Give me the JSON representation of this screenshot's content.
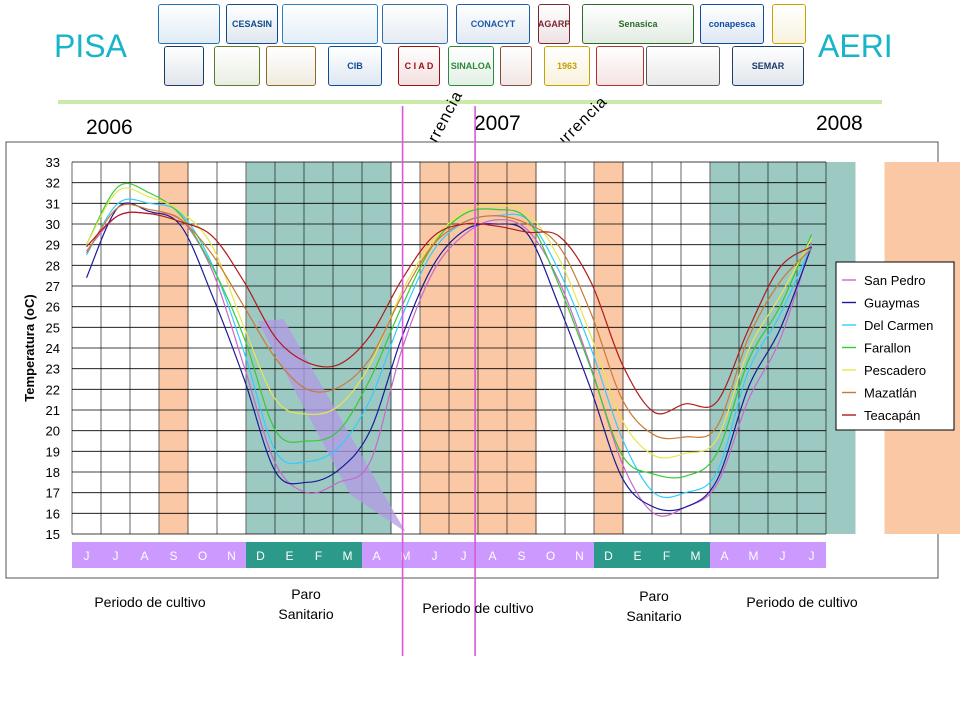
{
  "header": {
    "left_brand": "PISA",
    "right_brand": "AERI",
    "logos_row1": [
      {
        "name": "comite-sanidad-sonora-logo",
        "color": "#1f6fb4"
      },
      {
        "name": "cesasin-logo",
        "text": "CESASIN",
        "color": "#0f4c8a"
      },
      {
        "name": "comite-sanidad-nayarit-logo",
        "color": "#2a7fc0"
      },
      {
        "name": "comite-sanidad-bcs-logo",
        "color": "#3a6aa0"
      },
      {
        "name": "conacyt-logo",
        "text": "CONACYT",
        "color": "#1d5aa6"
      },
      {
        "name": "sagarpa-logo",
        "text": "SAGARPA",
        "color": "#7a2630"
      },
      {
        "name": "senasica-logo",
        "text": "Senasica",
        "color": "#2a6a2a"
      },
      {
        "name": "conapesca-logo",
        "text": "conapesca",
        "color": "#0c4da2"
      },
      {
        "name": "state-emblem-logo",
        "color": "#c8a000"
      }
    ],
    "logos_row2": [
      {
        "name": "unam-logo",
        "color": "#1b3a6b"
      },
      {
        "name": "university-emblem-logo",
        "color": "#5b7b2a"
      },
      {
        "name": "shield-emblem-logo",
        "color": "#8a6a20"
      },
      {
        "name": "cib-logo",
        "text": "CIB",
        "color": "#0a4b9a"
      },
      {
        "name": "ciad-logo",
        "text": "C I A D",
        "color": "#a01010"
      },
      {
        "name": "sinaloa-logo",
        "text": "SINALOA",
        "color": "#2a8a3a"
      },
      {
        "name": "aztec-emblem-logo",
        "color": "#8a4a3a"
      },
      {
        "name": "circle-seal-logo",
        "text": "1963",
        "color": "#c8a000"
      },
      {
        "name": "round-seal-logo",
        "color": "#b03030"
      },
      {
        "name": "mountain-emblem-logo",
        "color": "#555555"
      },
      {
        "name": "semar-logo",
        "text": "SEMAR",
        "color": "#1c3c6a"
      }
    ]
  },
  "annotations": {
    "year_2006": "2006",
    "year_2007": "2007",
    "year_2008": "2008",
    "ocurrencia": "Ocurrencia",
    "recurrencia": "Recurrencia",
    "cultivo_1": "Periodo de cultivo",
    "paro_1": [
      "Paro",
      "Sanitario"
    ],
    "cultivo_2": "Periodo de cultivo",
    "paro_2": [
      "Paro",
      "Sanitario"
    ],
    "cultivo_3": "Periodo de cultivo"
  },
  "colors": {
    "orange_band": "#fac8a5",
    "teal_band": "#9ccac3",
    "purple_strip": "#cc99ff",
    "teal_strip": "#2b9a8a",
    "purple_trend": "#b39ae6",
    "marker_line": "#d75ad7"
  },
  "chart_data": {
    "type": "line",
    "ylabel": "Temperatura (oC)",
    "ylim": [
      15,
      33
    ],
    "yticks": [
      15,
      16,
      17,
      18,
      19,
      20,
      21,
      22,
      23,
      24,
      25,
      26,
      27,
      28,
      29,
      30,
      31,
      32,
      33
    ],
    "x_categories": [
      "J",
      "J",
      "A",
      "S",
      "O",
      "N",
      "D",
      "E",
      "F",
      "M",
      "A",
      "M",
      "J",
      "J",
      "A",
      "S",
      "O",
      "N",
      "D",
      "E",
      "F",
      "M",
      "A",
      "M",
      "J",
      "J"
    ],
    "legend_position": "right",
    "grid": true,
    "orange_periods_months": [
      [
        3.5,
        4.5
      ],
      [
        12.5,
        16.5
      ],
      [
        18.5,
        19.5
      ],
      [
        28.5,
        33.5
      ]
    ],
    "teal_periods_months": [
      [
        6.5,
        11.5
      ],
      [
        22.5,
        27.5
      ]
    ],
    "marker_lines_months": [
      11.4,
      13.9
    ],
    "trend_band_vertices": [
      [
        6.4,
        25.3
      ],
      [
        7.3,
        25.4
      ],
      [
        11.5,
        15.1
      ],
      [
        9.6,
        16.9
      ]
    ],
    "series": [
      {
        "name": "San Pedro",
        "color": "#cc66cc",
        "values": [
          28.7,
          30.4,
          30.5,
          30.2,
          27.7,
          23.1,
          18.4,
          17.0,
          17.5,
          18.5,
          23.9,
          27.7,
          29.5,
          30.2,
          29.7,
          27.2,
          23.1,
          18.4,
          16.0,
          16.3,
          17.4,
          21.5,
          24.4,
          29.1
        ]
      },
      {
        "name": "Guaymas",
        "color": "#1a1a99",
        "values": [
          27.4,
          30.8,
          30.6,
          29.9,
          26.5,
          22.5,
          18.0,
          17.5,
          18.1,
          20.0,
          24.5,
          28.0,
          29.7,
          30.0,
          29.5,
          26.0,
          22.0,
          17.7,
          16.3,
          16.3,
          17.6,
          22.1,
          24.9,
          28.9
        ]
      },
      {
        "name": "Del Carmen",
        "color": "#33ccff",
        "values": [
          28.5,
          31.0,
          31.0,
          30.5,
          28.0,
          23.8,
          19.0,
          18.5,
          19.2,
          21.5,
          25.5,
          28.7,
          30.1,
          30.4,
          30.2,
          27.7,
          24.0,
          19.6,
          17.0,
          17.0,
          18.0,
          22.9,
          25.6,
          29.0
        ]
      },
      {
        "name": "Farallon",
        "color": "#33cc33",
        "values": [
          29.0,
          31.8,
          31.5,
          30.4,
          27.9,
          24.5,
          20.0,
          19.5,
          20.0,
          22.5,
          26.0,
          29.0,
          30.5,
          30.7,
          30.2,
          27.0,
          23.0,
          18.8,
          17.9,
          17.8,
          18.9,
          23.4,
          26.0,
          29.5
        ]
      },
      {
        "name": "Pescadero",
        "color": "#e6e64d",
        "values": [
          29.0,
          31.6,
          31.3,
          30.6,
          28.9,
          25.0,
          21.5,
          20.8,
          21.2,
          23.2,
          26.7,
          29.2,
          30.6,
          30.9,
          30.5,
          28.3,
          24.6,
          20.5,
          18.8,
          18.9,
          19.6,
          23.9,
          26.5,
          29.3
        ]
      },
      {
        "name": "Mazatlán",
        "color": "#cc7a33",
        "values": [
          28.6,
          30.8,
          30.7,
          30.2,
          28.5,
          26.0,
          23.5,
          22.0,
          22.1,
          23.5,
          26.5,
          29.0,
          30.1,
          30.4,
          30.0,
          28.9,
          25.7,
          21.5,
          19.8,
          19.7,
          20.2,
          24.5,
          27.2,
          28.8
        ]
      },
      {
        "name": "Teacapán",
        "color": "#b31a1a",
        "values": [
          28.9,
          30.4,
          30.5,
          30.1,
          29.4,
          27.2,
          24.5,
          23.3,
          23.2,
          24.6,
          27.3,
          29.4,
          30.0,
          29.9,
          29.6,
          29.4,
          27.2,
          23.2,
          20.9,
          21.3,
          21.4,
          24.9,
          27.9,
          28.9
        ]
      }
    ]
  }
}
